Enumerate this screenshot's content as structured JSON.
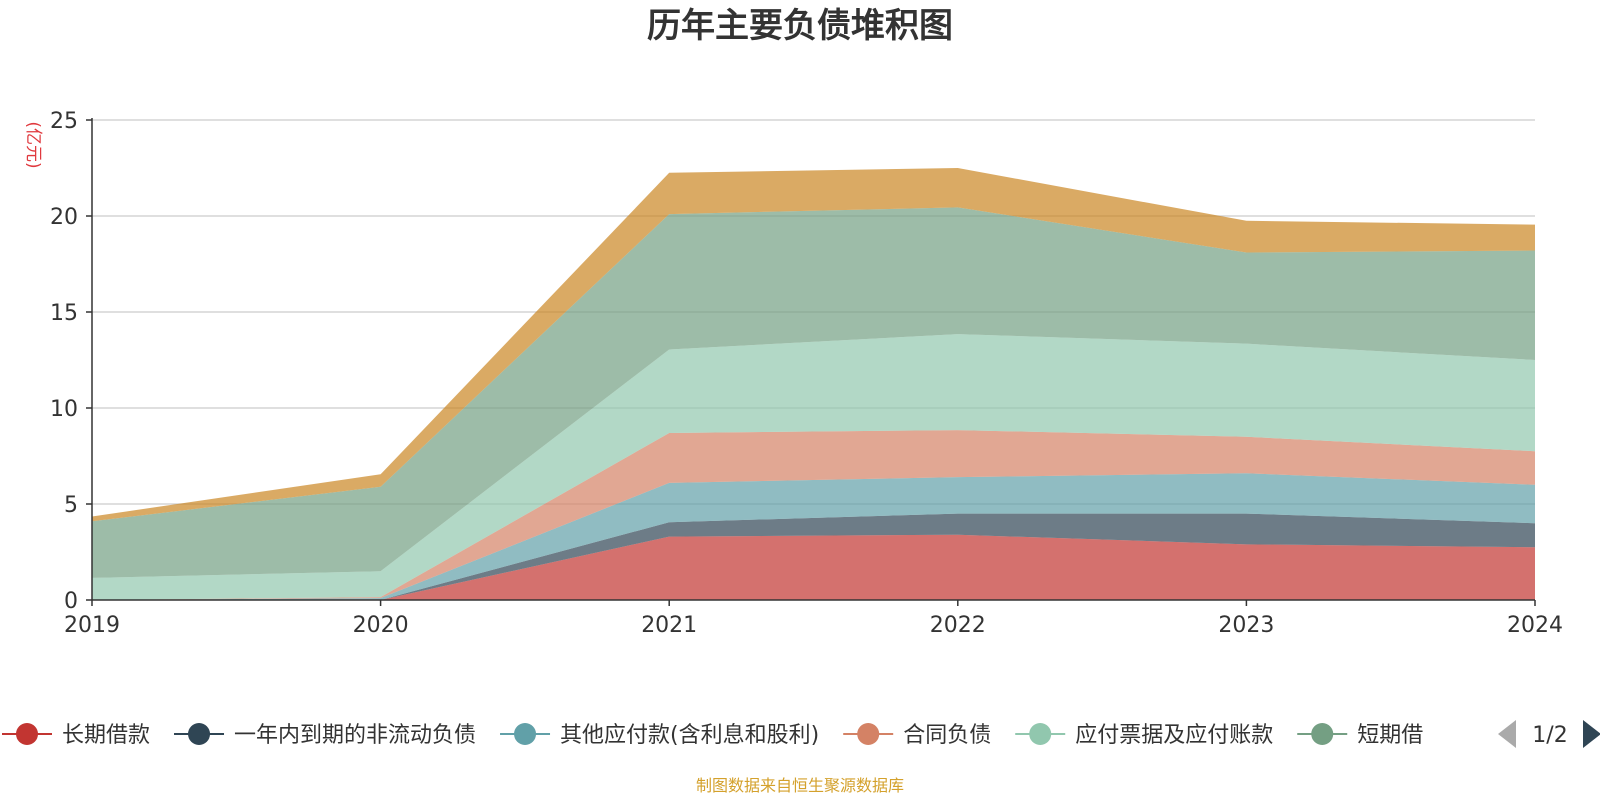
{
  "chart_data": {
    "type": "area",
    "stacked": true,
    "title": "历年主要负债堆积图",
    "unit_label": "(亿元)",
    "x": [
      "2019",
      "2020",
      "2021",
      "2022",
      "2023",
      "2024"
    ],
    "ylim": [
      0,
      25
    ],
    "yticks": [
      0,
      5,
      10,
      15,
      20,
      25
    ],
    "grid": true,
    "series": [
      {
        "name": "长期借款",
        "color": "#c23531",
        "values": [
          0,
          0,
          3.3,
          3.4,
          2.9,
          2.75
        ]
      },
      {
        "name": "一年内到期的非流动负债",
        "color": "#2f4554",
        "values": [
          0,
          0,
          0.75,
          1.1,
          1.6,
          1.25
        ]
      },
      {
        "name": "其他应付款(含利息和股利)",
        "color": "#61a0a8",
        "values": [
          0,
          0.1,
          2.05,
          1.9,
          2.1,
          2.0
        ]
      },
      {
        "name": "合同负债",
        "color": "#d48265",
        "values": [
          0,
          0.05,
          2.6,
          2.45,
          1.9,
          1.75
        ]
      },
      {
        "name": "应付票据及应付账款",
        "color": "#91c7ae",
        "values": [
          1.15,
          1.35,
          4.35,
          5.0,
          4.85,
          4.75
        ]
      },
      {
        "name": "短期借款",
        "color": "#749f83",
        "values": [
          2.95,
          4.4,
          7.05,
          6.6,
          4.75,
          5.7
        ]
      },
      {
        "name": "",
        "color": "#ca8622",
        "values": [
          0.25,
          0.65,
          2.15,
          2.05,
          1.65,
          1.35
        ]
      }
    ],
    "legend": {
      "position": "bottom",
      "visible_items": [
        "长期借款",
        "一年内到期的非流动负债",
        "其他应付款(含利息和股利)",
        "合同负债",
        "应付票据及应付账款",
        "短期借"
      ],
      "page_indicator": "1/2"
    },
    "source_note": "制图数据来自恒生聚源数据库"
  }
}
